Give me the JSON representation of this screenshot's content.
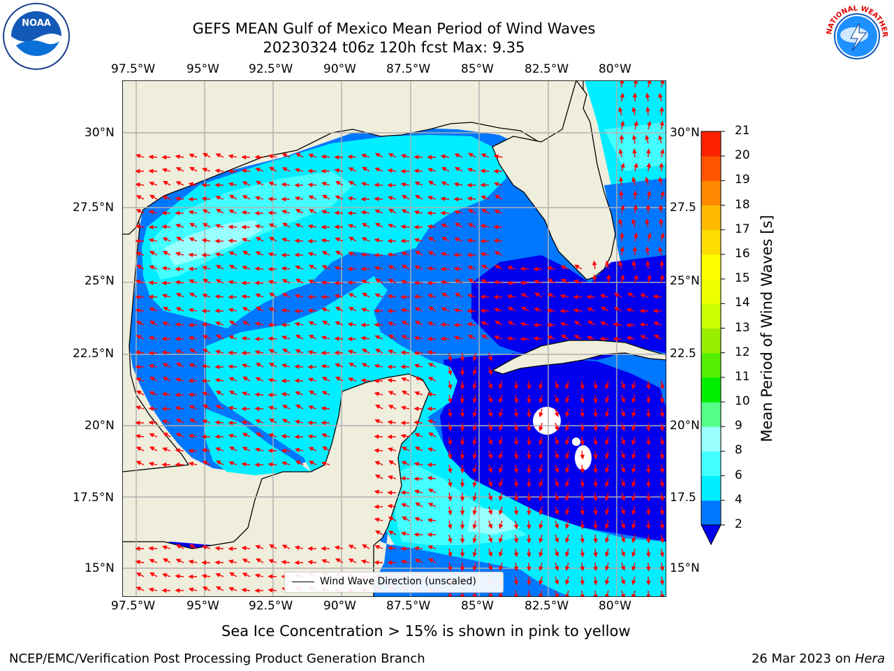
{
  "title": {
    "line1": "GEFS MEAN Gulf of Mexico Mean Period of Wind Waves",
    "line2": "20230324 t06z 120h fcst   Max: 9.35"
  },
  "axes": {
    "lon_labels": [
      "97.5°W",
      "95°W",
      "92.5°W",
      "90°W",
      "87.5°W",
      "85°W",
      "82.5°W",
      "80°W"
    ],
    "lat_labels_left": [
      "30°N",
      "27.5°N",
      "25°N",
      "22.5°N",
      "20°N",
      "17.5°N",
      "15°N"
    ],
    "lat_labels_right": [
      "30°N",
      "27.5",
      "25°N",
      "22.5",
      "20°N",
      "17.5",
      "15°N"
    ]
  },
  "legend": {
    "label": "Wind Wave Direction (unscaled)"
  },
  "colorbar": {
    "label": "Mean Period of Wind Waves [s]",
    "ticks": [
      "2",
      "4",
      "6",
      "8",
      "9",
      "10",
      "11",
      "12",
      "13",
      "14",
      "15",
      "16",
      "17",
      "18",
      "19",
      "20",
      "21"
    ],
    "colors": [
      "#0077ff",
      "#00eeff",
      "#44ffff",
      "#99ffff",
      "#55ff88",
      "#00ee00",
      "#55ee00",
      "#99ee00",
      "#ccff00",
      "#eeff00",
      "#ffff00",
      "#ffdd00",
      "#ffbb00",
      "#ff8800",
      "#ff5500",
      "#ff2200"
    ],
    "under_color": "#0000ee"
  },
  "map_colors": {
    "land": "#efeddc",
    "level_lt2": "#0000ee",
    "level_2_4": "#0077ff",
    "level_4_6": "#00eeff",
    "level_6_8": "#44ffff",
    "level_8_9": "#99ffff",
    "arrow": "#ff0000"
  },
  "logos": {
    "noaa_text": "NOAA",
    "nws_text": "NATIONAL WEATHER SERVICE"
  },
  "footer": {
    "note": "Sea Ice Concentration > 15% is shown in pink to yellow",
    "credit": "NCEP/EMC/Verification Post Processing Product Generation Branch",
    "date": "26 Mar 2023 on ",
    "machine": "Hera"
  }
}
